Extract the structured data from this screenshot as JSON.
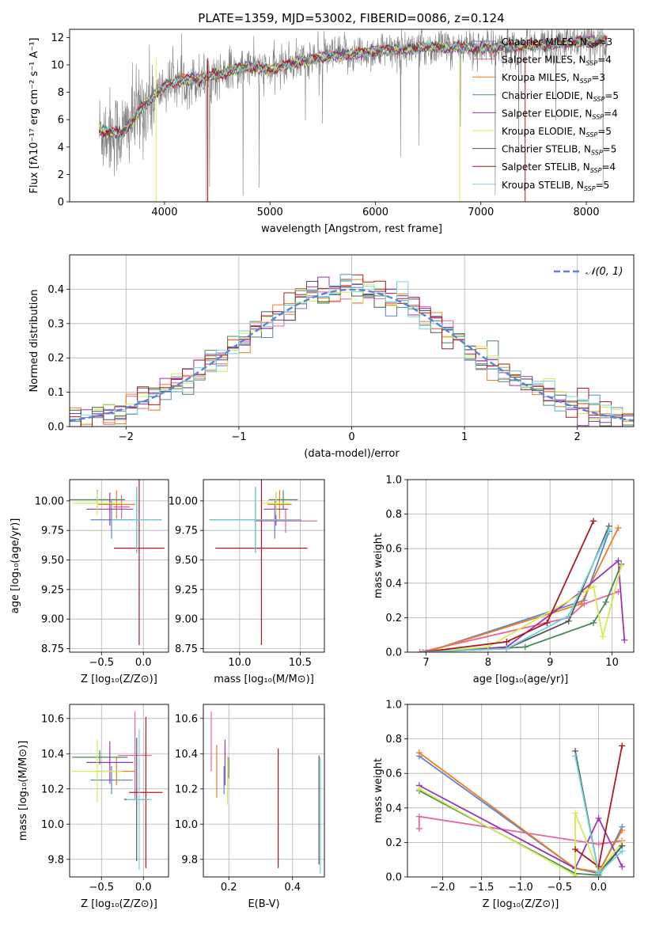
{
  "figure_title": "PLATE=1359, MJD=53002, FIBERID=0086, z=0.124",
  "colors": {
    "Chabrier MILES": "#5b84d6",
    "Salpeter MILES": "#e8649e",
    "Kroupa MILES": "#f07d1e",
    "Chabrier ELODIE": "#4a8a5a",
    "Salpeter ELODIE": "#9b35b5",
    "Kroupa ELODIE": "#d0ee50",
    "Chabrier STELIB": "#555555",
    "Salpeter STELIB": "#b01820",
    "Kroupa STELIB": "#72d3dd",
    "data": "#808080",
    "gaussian": "#5b84d6"
  },
  "chart_data": [
    {
      "id": "spectrum",
      "type": "line",
      "title": "PLATE=1359, MJD=53002, FIBERID=0086, z=0.124",
      "xlabel": "wavelength [Angstrom, rest frame]",
      "ylabel": "Flux [fλ10⁻¹⁷ erg cm⁻² s⁻¹ A⁻¹]",
      "xlim": [
        3100,
        8450
      ],
      "ylim": [
        0,
        12.6
      ],
      "xticks": [
        4000,
        5000,
        6000,
        7000,
        8000
      ],
      "yticks": [
        0,
        2,
        4,
        6,
        8,
        10,
        12
      ],
      "legend_position": "top-right",
      "legend": [
        {
          "label": "Chabrier MILES, N",
          "sub": "SSP",
          "suffix": "=3"
        },
        {
          "label": "Salpeter MILES, N",
          "sub": "SSP",
          "suffix": "=4"
        },
        {
          "label": "Kroupa MILES, N",
          "sub": "SSP",
          "suffix": "=3"
        },
        {
          "label": "Chabrier ELODIE, N",
          "sub": "SSP",
          "suffix": "=5"
        },
        {
          "label": "Salpeter ELODIE, N",
          "sub": "SSP",
          "suffix": "=4"
        },
        {
          "label": "Kroupa ELODIE, N",
          "sub": "SSP",
          "suffix": "=5"
        },
        {
          "label": "Chabrier STELIB, N",
          "sub": "SSP",
          "suffix": "=5"
        },
        {
          "label": "Salpeter STELIB, N",
          "sub": "SSP",
          "suffix": "=4"
        },
        {
          "label": "Kroupa STELIB, N",
          "sub": "SSP",
          "suffix": "=5"
        }
      ],
      "continuum": {
        "x": [
          3380,
          3500,
          3600,
          3700,
          3800,
          3900,
          4000,
          4100,
          4200,
          4300,
          4500,
          4800,
          5000,
          5200,
          5500,
          5800,
          6000,
          6200,
          6500,
          6800,
          7000,
          7200,
          7500,
          7800,
          8000,
          8200
        ],
        "y": [
          5.2,
          5.1,
          5.0,
          6.0,
          7.0,
          7.7,
          8.4,
          8.8,
          8.9,
          8.9,
          9.3,
          9.9,
          9.6,
          10.1,
          10.6,
          10.8,
          11.0,
          11.1,
          11.3,
          11.3,
          11.2,
          11.3,
          11.4,
          11.6,
          11.7,
          11.8
        ]
      }
    },
    {
      "id": "residuals",
      "type": "line",
      "xlabel": "(data-model)/error",
      "ylabel": "Normed distribution",
      "xlim": [
        -2.5,
        2.5
      ],
      "ylim": [
        0,
        0.5
      ],
      "xticks": [
        -2,
        -1,
        0,
        1,
        2
      ],
      "yticks": [
        0.0,
        0.1,
        0.2,
        0.3,
        0.4
      ],
      "legend_label": "𝒩(0, 1)",
      "legend_position": "top-right",
      "gaussian": {
        "mean": 0,
        "sigma": 1
      }
    },
    {
      "id": "age_vs_Z",
      "type": "scatter",
      "xlabel": "Z [log₁₀(Z/Z⊙)]",
      "ylabel": "age  [log₁₀(age/yr)]",
      "xlim": [
        -0.88,
        0.3
      ],
      "ylim": [
        8.72,
        10.18
      ],
      "xticks": [
        -0.5,
        0.0
      ],
      "yticks": [
        8.75,
        9.0,
        9.25,
        9.5,
        9.75,
        10.0
      ],
      "points": [
        {
          "model": "Chabrier MILES",
          "x": -0.38,
          "y": 9.84,
          "xerr": 0.25,
          "yerr": 0.16
        },
        {
          "model": "Salpeter MILES",
          "x": -0.26,
          "y": 9.95,
          "xerr": 0.1,
          "yerr": 0.1
        },
        {
          "model": "Kroupa MILES",
          "x": -0.32,
          "y": 9.97,
          "xerr": 0.22,
          "yerr": 0.12
        },
        {
          "model": "Chabrier ELODIE",
          "x": -0.55,
          "y": 10.01,
          "xerr": 0.33,
          "yerr": 0.08
        },
        {
          "model": "Salpeter ELODIE",
          "x": -0.4,
          "y": 9.93,
          "xerr": 0.28,
          "yerr": 0.14
        },
        {
          "model": "Kroupa ELODIE",
          "x": -0.55,
          "y": 9.98,
          "xerr": 0.3,
          "yerr": 0.1
        },
        {
          "model": "Chabrier STELIB",
          "x": -0.08,
          "y": 9.84,
          "xerr": 0.3,
          "yerr": 0.28
        },
        {
          "model": "Salpeter STELIB",
          "x": -0.05,
          "y": 9.6,
          "xerr": 0.3,
          "yerr": 0.82
        },
        {
          "model": "Kroupa STELIB",
          "x": -0.08,
          "y": 9.84,
          "xerr": 0.3,
          "yerr": 0.28
        }
      ]
    },
    {
      "id": "age_vs_mass",
      "type": "scatter",
      "xlabel": "mass [log₁₀(M/M⊙)]",
      "xlim": [
        9.7,
        10.7
      ],
      "ylim": [
        8.72,
        10.18
      ],
      "xticks": [
        10.0,
        10.5
      ],
      "yticks": [
        8.75,
        9.0,
        9.25,
        9.5,
        9.75,
        10.0
      ],
      "points": [
        {
          "model": "Chabrier MILES",
          "x": 10.29,
          "y": 9.84,
          "xerr": 0.1,
          "yerr": 0.16
        },
        {
          "model": "Salpeter MILES",
          "x": 10.38,
          "y": 9.83,
          "xerr": 0.26,
          "yerr": 0.1
        },
        {
          "model": "Kroupa MILES",
          "x": 10.33,
          "y": 9.97,
          "xerr": 0.1,
          "yerr": 0.12
        },
        {
          "model": "Chabrier ELODIE",
          "x": 10.36,
          "y": 10.01,
          "xerr": 0.12,
          "yerr": 0.08
        },
        {
          "model": "Salpeter ELODIE",
          "x": 10.3,
          "y": 9.93,
          "xerr": 0.1,
          "yerr": 0.14
        },
        {
          "model": "Kroupa ELODIE",
          "x": 10.3,
          "y": 9.98,
          "xerr": 0.12,
          "yerr": 0.1
        },
        {
          "model": "Chabrier STELIB",
          "x": 10.13,
          "y": 9.84,
          "xerr": 0.38,
          "yerr": 0.28
        },
        {
          "model": "Salpeter STELIB",
          "x": 10.18,
          "y": 9.6,
          "xerr": 0.38,
          "yerr": 0.82
        },
        {
          "model": "Kroupa STELIB",
          "x": 10.13,
          "y": 9.84,
          "xerr": 0.38,
          "yerr": 0.28
        }
      ]
    },
    {
      "id": "weight_vs_age",
      "type": "line",
      "xlabel": "age  [log₁₀(age/yr)]",
      "ylabel": "mass weight",
      "xlim": [
        6.7,
        10.35
      ],
      "ylim": [
        0,
        1
      ],
      "xticks": [
        7,
        8,
        9,
        10
      ],
      "yticks": [
        0.0,
        0.2,
        0.4,
        0.6,
        0.8,
        1.0
      ],
      "series": [
        {
          "model": "Chabrier MILES",
          "x": [
            7.0,
            9.55,
            9.95
          ],
          "y": [
            0.0,
            0.3,
            0.7
          ]
        },
        {
          "model": "Salpeter MILES",
          "x": [
            6.9,
            9.3,
            9.55,
            10.1
          ],
          "y": [
            0.0,
            0.2,
            0.28,
            0.35
          ]
        },
        {
          "model": "Kroupa MILES",
          "x": [
            7.0,
            9.5,
            10.1
          ],
          "y": [
            0.0,
            0.28,
            0.72
          ]
        },
        {
          "model": "Chabrier ELODIE",
          "x": [
            6.95,
            8.6,
            9.7,
            9.9,
            10.15
          ],
          "y": [
            0.0,
            0.03,
            0.17,
            0.29,
            0.51
          ]
        },
        {
          "model": "Salpeter ELODIE",
          "x": [
            6.95,
            8.3,
            9.5,
            10.1,
            10.2
          ],
          "y": [
            0.0,
            0.03,
            0.35,
            0.53,
            0.07
          ]
        },
        {
          "model": "Kroupa ELODIE",
          "x": [
            6.95,
            8.0,
            9.7,
            9.85,
            10.15
          ],
          "y": [
            0.0,
            0.03,
            0.38,
            0.09,
            0.5
          ]
        },
        {
          "model": "Chabrier STELIB",
          "x": [
            6.95,
            8.3,
            9.3,
            9.95
          ],
          "y": [
            0.0,
            0.02,
            0.18,
            0.73
          ]
        },
        {
          "model": "Salpeter STELIB",
          "x": [
            6.95,
            8.3,
            8.95,
            9.7
          ],
          "y": [
            0.0,
            0.06,
            0.17,
            0.76
          ]
        },
        {
          "model": "Kroupa STELIB",
          "x": [
            6.95,
            8.3,
            9.3,
            9.95
          ],
          "y": [
            0.0,
            0.02,
            0.21,
            0.71
          ]
        }
      ]
    },
    {
      "id": "mass_vs_Z",
      "type": "scatter",
      "xlabel": "Z [log₁₀(Z/Z⊙)]",
      "ylabel": "mass [log₁₀(M/M⊙)]",
      "xlim": [
        -0.88,
        0.3
      ],
      "ylim": [
        9.7,
        10.68
      ],
      "xticks": [
        -0.5,
        0.0
      ],
      "yticks": [
        9.8,
        10.0,
        10.2,
        10.4,
        10.6
      ],
      "points": [
        {
          "model": "Chabrier MILES",
          "x": -0.38,
          "y": 10.25,
          "xerr": 0.25,
          "yerr": 0.08
        },
        {
          "model": "Salpeter MILES",
          "x": -0.1,
          "y": 10.39,
          "xerr": 0.2,
          "yerr": 0.25
        },
        {
          "model": "Kroupa MILES",
          "x": -0.32,
          "y": 10.3,
          "xerr": 0.22,
          "yerr": 0.08
        },
        {
          "model": "Chabrier ELODIE",
          "x": -0.52,
          "y": 10.38,
          "xerr": 0.33,
          "yerr": 0.04
        },
        {
          "model": "Salpeter ELODIE",
          "x": -0.4,
          "y": 10.35,
          "xerr": 0.28,
          "yerr": 0.12
        },
        {
          "model": "Kroupa ELODIE",
          "x": -0.55,
          "y": 10.3,
          "xerr": 0.3,
          "yerr": 0.18
        },
        {
          "model": "Chabrier STELIB",
          "x": -0.08,
          "y": 10.14,
          "xerr": 0.15,
          "yerr": 0.35
        },
        {
          "model": "Salpeter STELIB",
          "x": 0.03,
          "y": 10.18,
          "xerr": 0.2,
          "yerr": 0.43
        },
        {
          "model": "Kroupa STELIB",
          "x": -0.05,
          "y": 10.14,
          "xerr": 0.15,
          "yerr": 0.4
        }
      ]
    },
    {
      "id": "mass_vs_ebv",
      "type": "scatter",
      "xlabel": "E(B-V)",
      "xlim": [
        0.12,
        0.5
      ],
      "ylim": [
        9.7,
        10.68
      ],
      "xticks": [
        0.2,
        0.4
      ],
      "yticks": [
        9.8,
        10.0,
        10.2,
        10.4,
        10.6
      ],
      "points": [
        {
          "model": "Chabrier MILES",
          "x": 0.185,
          "y": 10.25,
          "yerr": 0.08
        },
        {
          "model": "Salpeter MILES",
          "x": 0.145,
          "y": 10.47,
          "yerr": 0.17
        },
        {
          "model": "Kroupa MILES",
          "x": 0.162,
          "y": 10.3,
          "yerr": 0.15
        },
        {
          "model": "Chabrier ELODIE",
          "x": 0.2,
          "y": 10.32,
          "yerr": 0.06
        },
        {
          "model": "Salpeter ELODIE",
          "x": 0.188,
          "y": 10.35,
          "yerr": 0.13
        },
        {
          "model": "Kroupa ELODIE",
          "x": 0.196,
          "y": 10.25,
          "yerr": 0.14
        },
        {
          "model": "Chabrier STELIB",
          "x": 0.483,
          "y": 10.08,
          "yerr": 0.31
        },
        {
          "model": "Salpeter STELIB",
          "x": 0.355,
          "y": 10.09,
          "yerr": 0.34
        },
        {
          "model": "Kroupa STELIB",
          "x": 0.487,
          "y": 10.05,
          "yerr": 0.33
        }
      ]
    },
    {
      "id": "weight_vs_Z",
      "type": "line",
      "xlabel": "Z [log₁₀(Z/Z⊙)]",
      "ylabel": "mass weight",
      "xlim": [
        -2.45,
        0.45
      ],
      "ylim": [
        0,
        1
      ],
      "xticks": [
        -2.0,
        -1.5,
        -1.0,
        -0.5,
        0.0
      ],
      "yticks": [
        0.0,
        0.2,
        0.4,
        0.6,
        0.8,
        1.0
      ],
      "series": [
        {
          "model": "Chabrier MILES",
          "x": [
            -2.3,
            -0.3,
            0.0,
            0.3
          ],
          "y": [
            0.7,
            0.05,
            0.02,
            0.29
          ]
        },
        {
          "model": "Salpeter MILES",
          "x": [
            -2.3,
            -2.3,
            0.0,
            0.3
          ],
          "y": [
            0.28,
            0.35,
            0.19,
            0.21
          ]
        },
        {
          "model": "Kroupa MILES",
          "x": [
            -2.3,
            -0.3,
            0.0,
            0.3
          ],
          "y": [
            0.72,
            0.05,
            0.03,
            0.27
          ]
        },
        {
          "model": "Chabrier ELODIE",
          "x": [
            -2.3,
            -0.3,
            0.0,
            0.3
          ],
          "y": [
            0.5,
            0.02,
            0.01,
            0.18
          ]
        },
        {
          "model": "Salpeter ELODIE",
          "x": [
            -2.3,
            -0.3,
            0.0,
            0.3
          ],
          "y": [
            0.53,
            0.05,
            0.34,
            0.06
          ]
        },
        {
          "model": "Kroupa ELODIE",
          "x": [
            -2.3,
            -0.3,
            -0.3,
            0.0,
            0.3
          ],
          "y": [
            0.51,
            0.01,
            0.37,
            0.03,
            0.2
          ]
        },
        {
          "model": "Chabrier STELIB",
          "x": [
            -0.3,
            0.0,
            0.3
          ],
          "y": [
            0.73,
            0.02,
            0.18
          ]
        },
        {
          "model": "Salpeter STELIB",
          "x": [
            -0.3,
            0.0,
            0.3
          ],
          "y": [
            0.16,
            0.06,
            0.76
          ]
        },
        {
          "model": "Kroupa STELIB",
          "x": [
            -0.3,
            0.0,
            0.3
          ],
          "y": [
            0.7,
            0.02,
            0.15
          ]
        }
      ]
    }
  ]
}
